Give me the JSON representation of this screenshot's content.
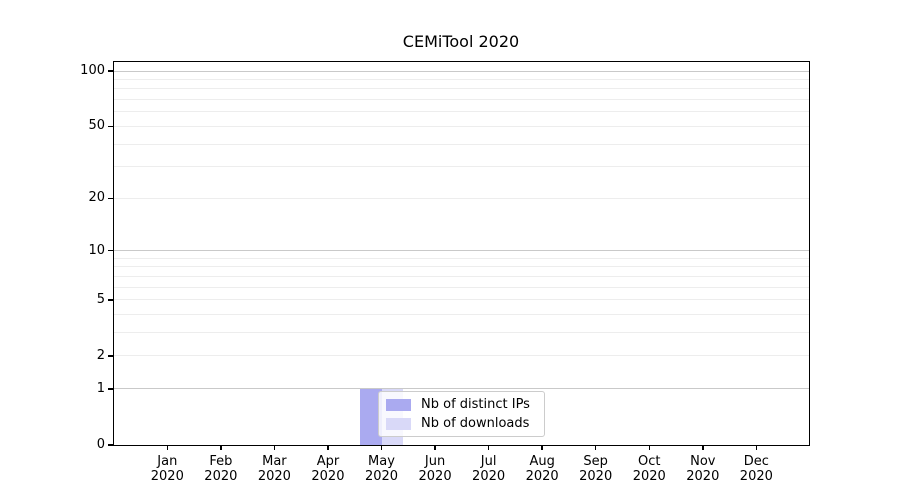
{
  "title": "CEMiTool 2020",
  "chart_data": {
    "type": "bar",
    "title": "CEMiTool 2020",
    "categories": [
      "Jan 2020",
      "Feb 2020",
      "Mar 2020",
      "Apr 2020",
      "May 2020",
      "Jun 2020",
      "Jul 2020",
      "Aug 2020",
      "Sep 2020",
      "Oct 2020",
      "Nov 2020",
      "Dec 2020"
    ],
    "series": [
      {
        "name": "Nb of distinct IPs",
        "color": "#aaaaf0",
        "values": [
          0,
          0,
          0,
          0,
          1,
          0,
          0,
          0,
          0,
          0,
          0,
          0
        ]
      },
      {
        "name": "Nb of downloads",
        "color": "#d9d9f8",
        "values": [
          0,
          0,
          0,
          0,
          1,
          0,
          0,
          0,
          0,
          0,
          0,
          0
        ]
      }
    ],
    "xlabel": "",
    "ylabel": "",
    "yscale": "log10(1+y)",
    "ylim": [
      0,
      113
    ],
    "yticks": [
      0,
      1,
      2,
      5,
      10,
      20,
      50,
      100
    ],
    "grid": true,
    "grid_major_values": [
      1,
      10,
      100
    ],
    "grid_minor_values": [
      2,
      3,
      4,
      5,
      6,
      7,
      8,
      9,
      20,
      30,
      40,
      50,
      60,
      70,
      80,
      90
    ],
    "legend_position": "inside lower-center, overlapping May bars"
  }
}
